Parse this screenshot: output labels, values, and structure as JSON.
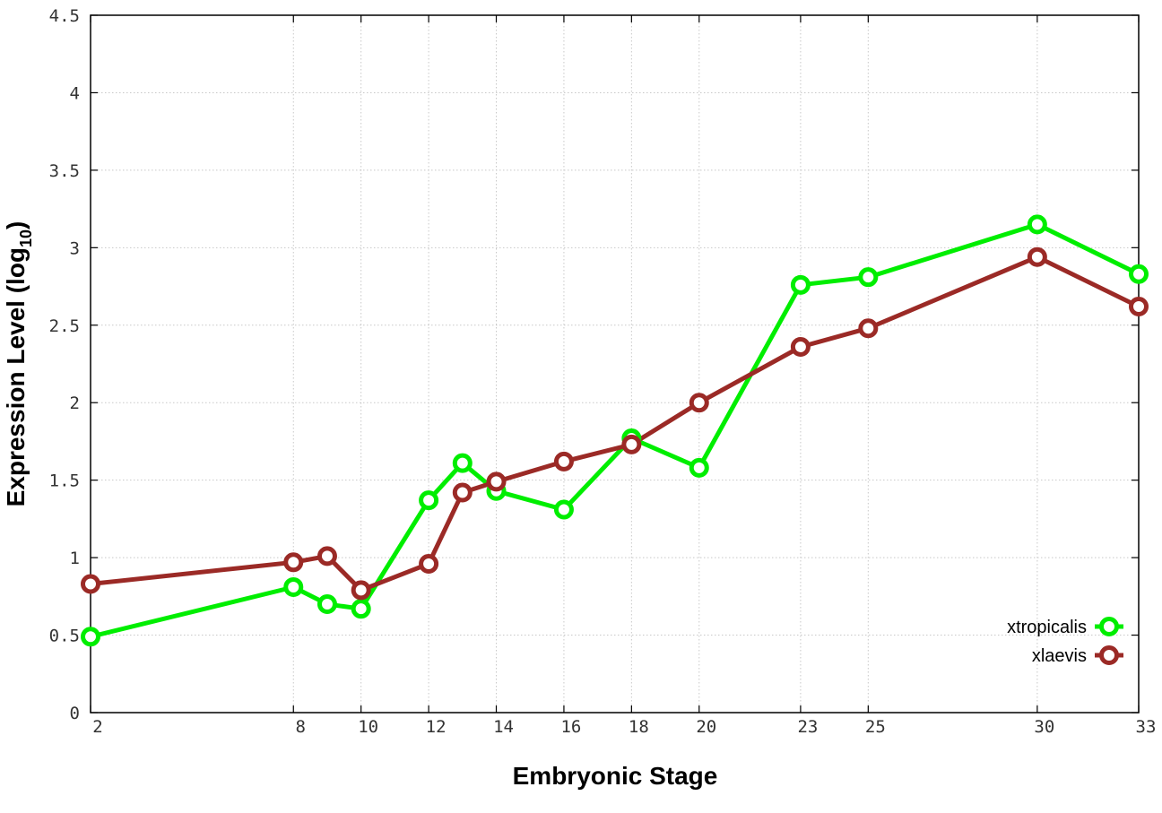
{
  "chart_data": {
    "type": "line",
    "xlabel": "Embryonic Stage",
    "ylabel": "Expression Level (log",
    "ylabel_subscript": "10",
    "ylabel_close": ")",
    "ylim": [
      0,
      4.5
    ],
    "xlim": [
      2,
      33
    ],
    "grid": true,
    "legend_position": "bottom-right",
    "x_ticks": [
      2,
      8,
      10,
      12,
      14,
      16,
      18,
      20,
      23,
      25,
      30,
      33
    ],
    "x_tick_labels": [
      "2",
      "8",
      "10",
      "12",
      "14",
      "16",
      "18",
      "20",
      "23",
      "25",
      "30",
      "33"
    ],
    "y_ticks": [
      0,
      0.5,
      1,
      1.5,
      2,
      2.5,
      3,
      3.5,
      4,
      4.5
    ],
    "y_tick_labels": [
      "0",
      "0.5",
      "1",
      "1.5",
      "2",
      "2.5",
      "3",
      "3.5",
      "4",
      "4.5"
    ],
    "series": [
      {
        "name": "xtropicalis",
        "color": "#00ee00",
        "x": [
          2,
          8,
          9,
          10,
          12,
          13,
          14,
          16,
          18,
          20,
          23,
          25,
          30,
          33
        ],
        "y": [
          0.49,
          0.81,
          0.7,
          0.67,
          1.37,
          1.61,
          1.43,
          1.31,
          1.77,
          1.58,
          2.76,
          2.81,
          3.15,
          2.83
        ]
      },
      {
        "name": "xlaevis",
        "color": "#9b2a26",
        "x": [
          2,
          8,
          9,
          10,
          12,
          13,
          14,
          16,
          18,
          20,
          23,
          25,
          30,
          33
        ],
        "y": [
          0.83,
          0.97,
          1.01,
          0.79,
          0.96,
          1.42,
          1.49,
          1.62,
          1.73,
          2.0,
          2.36,
          2.48,
          2.94,
          2.62
        ]
      }
    ]
  }
}
